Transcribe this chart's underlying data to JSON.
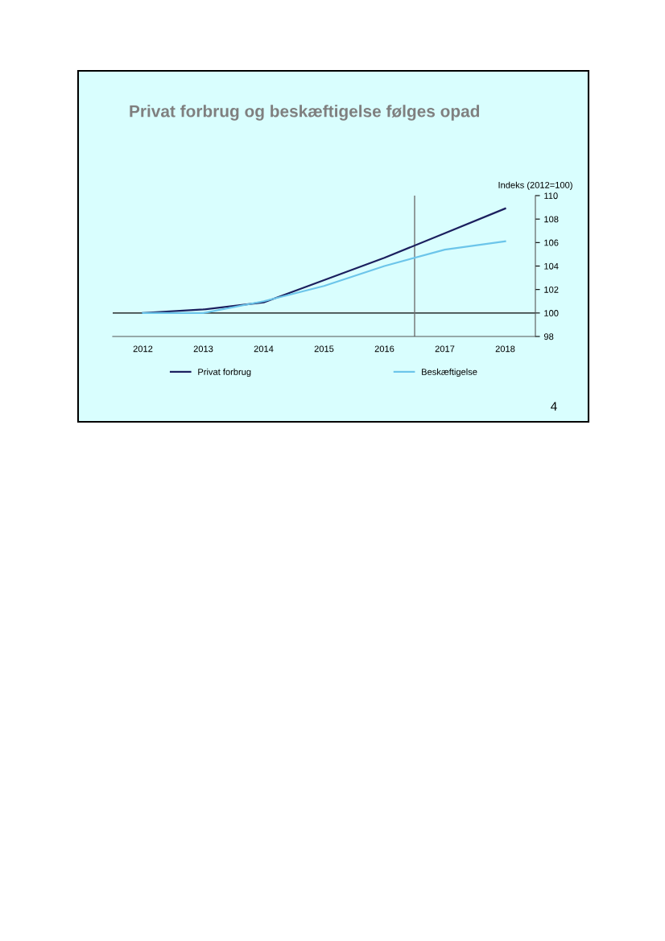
{
  "chart_data": {
    "type": "line",
    "title": "Privat forbrug og beskæftigelse følges opad",
    "ylabel": "Indeks (2012=100)",
    "x": [
      2012,
      2013,
      2014,
      2015,
      2016,
      2017,
      2018
    ],
    "series": [
      {
        "name": "Privat forbrug",
        "color": "#1b1f5e",
        "values": [
          100,
          100.3,
          100.9,
          102.8,
          104.7,
          106.8,
          108.9
        ]
      },
      {
        "name": "Beskæftigelse",
        "color": "#6cc5ea",
        "values": [
          100,
          100.0,
          101.0,
          102.3,
          104.0,
          105.4,
          106.1
        ]
      }
    ],
    "xlim": [
      2011.5,
      2018.5
    ],
    "xticks": [
      2012,
      2013,
      2014,
      2015,
      2016,
      2017,
      2018
    ],
    "ylim": [
      98,
      110
    ],
    "yticks": [
      98,
      100,
      102,
      104,
      106,
      108,
      110
    ],
    "ref_lines": [
      {
        "axis": "y",
        "value": 100,
        "color": "#000000"
      },
      {
        "axis": "x",
        "value": 2016.5,
        "color": "#707070"
      }
    ],
    "annotations": [
      "4"
    ],
    "grid": false,
    "legend": "bottom",
    "marker": "none",
    "line_style": "solid"
  }
}
